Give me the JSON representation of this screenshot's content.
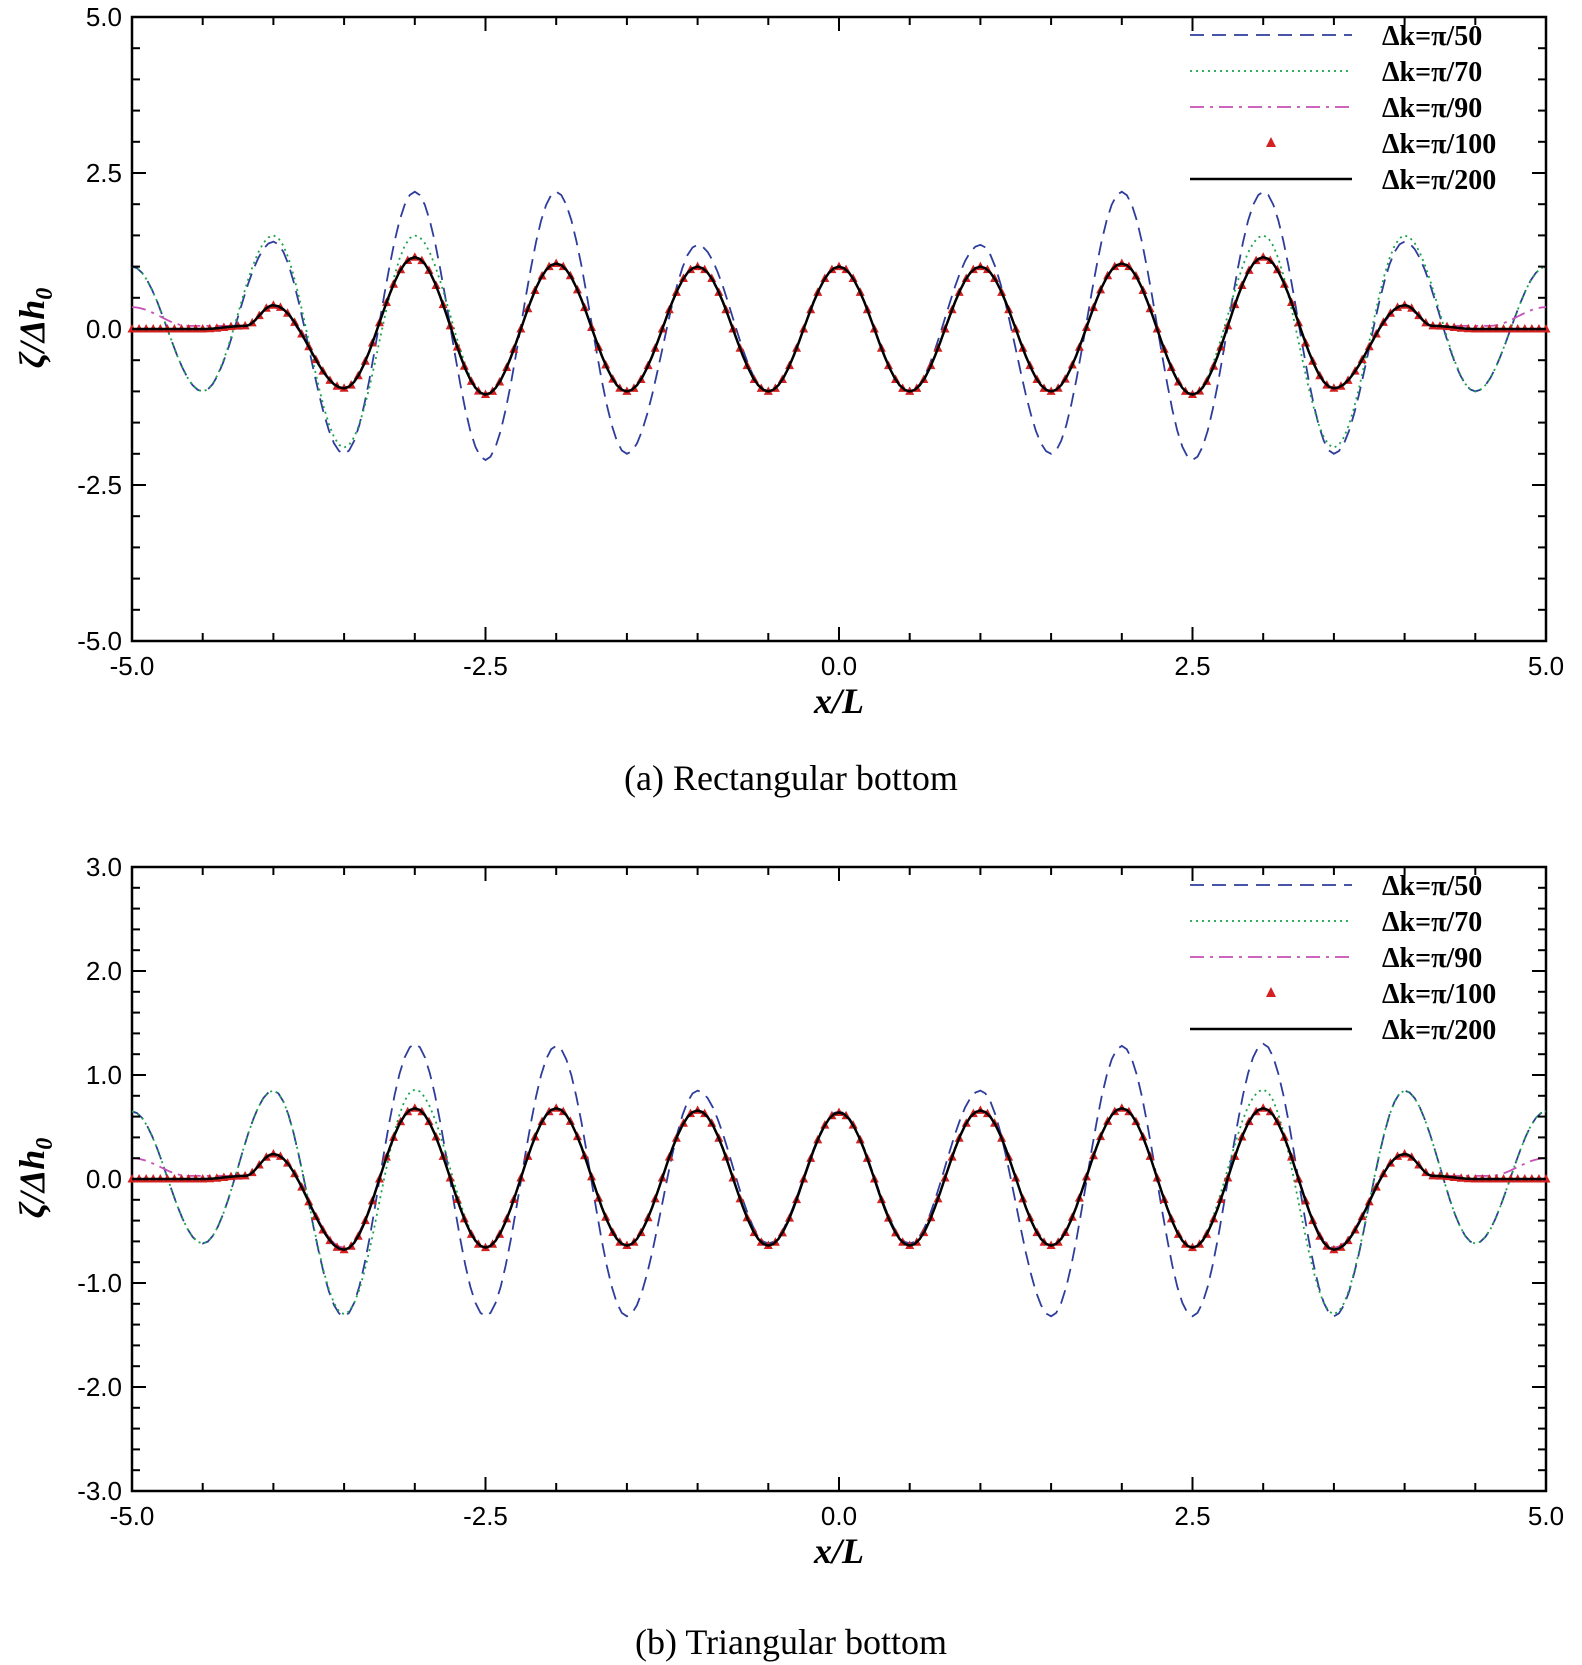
{
  "chart_data": [
    {
      "type": "line",
      "caption": "(a) Rectangular bottom",
      "xlabel": "x/L",
      "ylabel": "ζ/Δh0",
      "xlim": [
        -5.0,
        5.0
      ],
      "ylim": [
        -5.0,
        5.0
      ],
      "xticks": [
        "-5.0",
        "-2.5",
        "0.0",
        "2.5",
        "5.0"
      ],
      "yticks": [
        "5.0",
        "2.5",
        "0.0",
        "-2.5",
        "-5.0"
      ],
      "legend_position": "top-right",
      "series": [
        {
          "name": "Δk=π/50",
          "color": "#2e3d9c",
          "style": "dashed",
          "x": [
            -5,
            -4.5,
            -4,
            -3.5,
            -3,
            -2.5,
            -2,
            -1.5,
            -1,
            -0.5,
            0,
            0.5,
            1,
            1.5,
            2,
            2.5,
            3,
            3.5,
            4,
            4.5,
            5
          ],
          "y": [
            1.0,
            -1.0,
            1.4,
            -2.0,
            2.2,
            -2.1,
            2.2,
            -2.0,
            1.35,
            -1.0,
            1.0,
            -1.0,
            1.35,
            -2.0,
            2.2,
            -2.1,
            2.2,
            -2.0,
            1.4,
            -1.0,
            1.0
          ]
        },
        {
          "name": "Δk=π/70",
          "color": "#1aa34a",
          "style": "dotted",
          "x": [
            -5,
            -4.5,
            -4,
            -3.5,
            -3,
            -2.5,
            -2,
            -1.5,
            -1,
            -0.5,
            0,
            0.5,
            1,
            1.5,
            2,
            2.5,
            3,
            3.5,
            4,
            4.5,
            5
          ],
          "y": [
            1.0,
            -1.0,
            1.5,
            -1.9,
            1.5,
            -1.05,
            1.05,
            -1.0,
            1.0,
            -1.0,
            1.0,
            -1.0,
            1.0,
            -1.0,
            1.05,
            -1.05,
            1.5,
            -1.9,
            1.5,
            -1.0,
            1.0
          ]
        },
        {
          "name": "Δk=π/90",
          "color": "#c64fb8",
          "style": "dashdot",
          "x": [
            -5,
            -4.6,
            -4.2,
            -4,
            -3.5,
            -3,
            -2.5,
            -2,
            -1.5,
            -1,
            -0.5,
            0,
            0.5,
            1,
            1.5,
            2,
            2.5,
            3,
            3.5,
            4,
            4.2,
            4.6,
            5
          ],
          "y": [
            0.35,
            0.05,
            0.05,
            0.35,
            -0.95,
            1.15,
            -1.05,
            1.05,
            -1.0,
            1.0,
            -1.0,
            1.0,
            -1.0,
            1.0,
            -1.0,
            1.05,
            -1.05,
            1.15,
            -0.95,
            0.35,
            0.05,
            0.05,
            0.35
          ]
        },
        {
          "name": "Δk=π/100",
          "color": "#d42020",
          "style": "triangle-markers",
          "x": [
            -5,
            -4.5,
            -4.2,
            -4,
            -3.5,
            -3,
            -2.5,
            -2,
            -1.5,
            -1,
            -0.5,
            0,
            0.5,
            1,
            1.5,
            2,
            2.5,
            3,
            3.5,
            4,
            4.2,
            4.5,
            5
          ],
          "y": [
            0,
            0,
            0.05,
            0.38,
            -0.95,
            1.15,
            -1.05,
            1.05,
            -1.0,
            1.0,
            -1.0,
            1.0,
            -1.0,
            1.0,
            -1.0,
            1.05,
            -1.05,
            1.15,
            -0.95,
            0.38,
            0.05,
            0,
            0
          ]
        },
        {
          "name": "Δk=π/200",
          "color": "#000000",
          "style": "solid",
          "x": [
            -5,
            -4.5,
            -4.2,
            -4,
            -3.5,
            -3,
            -2.5,
            -2,
            -1.5,
            -1,
            -0.5,
            0,
            0.5,
            1,
            1.5,
            2,
            2.5,
            3,
            3.5,
            4,
            4.2,
            4.5,
            5
          ],
          "y": [
            0,
            0,
            0.05,
            0.38,
            -0.95,
            1.15,
            -1.05,
            1.05,
            -1.0,
            1.0,
            -1.0,
            1.0,
            -1.0,
            1.0,
            -1.0,
            1.05,
            -1.05,
            1.15,
            -0.95,
            0.38,
            0.05,
            0,
            0
          ]
        }
      ]
    },
    {
      "type": "line",
      "caption": "(b) Triangular bottom",
      "xlabel": "x/L",
      "ylabel": "ζ/Δh0",
      "xlim": [
        -5.0,
        5.0
      ],
      "ylim": [
        -3.0,
        3.0
      ],
      "xticks": [
        "-5.0",
        "-2.5",
        "0.0",
        "2.5",
        "5.0"
      ],
      "yticks": [
        "3.0",
        "2.0",
        "1.0",
        "0.0",
        "-1.0",
        "-2.0",
        "-3.0"
      ],
      "legend_position": "top-right",
      "series": [
        {
          "name": "Δk=π/50",
          "color": "#2e3d9c",
          "style": "dashed",
          "x": [
            -5,
            -4.5,
            -4,
            -3.5,
            -3,
            -2.5,
            -2,
            -1.5,
            -1,
            -0.5,
            0,
            0.5,
            1,
            1.5,
            2,
            2.5,
            3,
            3.5,
            4,
            4.5,
            5
          ],
          "y": [
            0.65,
            -0.62,
            0.85,
            -1.32,
            1.3,
            -1.32,
            1.28,
            -1.32,
            0.85,
            -0.62,
            0.65,
            -0.62,
            0.85,
            -1.32,
            1.28,
            -1.32,
            1.3,
            -1.32,
            0.85,
            -0.62,
            0.65
          ]
        },
        {
          "name": "Δk=π/70",
          "color": "#1aa34a",
          "style": "dotted",
          "x": [
            -5,
            -4.5,
            -4,
            -3.5,
            -3,
            -2.5,
            -2,
            -1.5,
            -1,
            -0.5,
            0,
            0.5,
            1,
            1.5,
            2,
            2.5,
            3,
            3.5,
            4,
            4.5,
            5
          ],
          "y": [
            0.65,
            -0.62,
            0.85,
            -1.3,
            0.86,
            -0.66,
            0.68,
            -0.64,
            0.66,
            -0.64,
            0.64,
            -0.64,
            0.66,
            -0.64,
            0.68,
            -0.66,
            0.86,
            -1.3,
            0.85,
            -0.62,
            0.65
          ]
        },
        {
          "name": "Δk=π/90",
          "color": "#c64fb8",
          "style": "dashdot",
          "x": [
            -5,
            -4.6,
            -4.2,
            -4,
            -3.5,
            -3,
            -2.5,
            -2,
            -1.5,
            -1,
            -0.5,
            0,
            0.5,
            1,
            1.5,
            2,
            2.5,
            3,
            3.5,
            4,
            4.2,
            4.6,
            5
          ],
          "y": [
            0.2,
            0.03,
            0.03,
            0.24,
            -0.66,
            0.68,
            -0.66,
            0.68,
            -0.64,
            0.66,
            -0.64,
            0.64,
            -0.64,
            0.66,
            -0.64,
            0.68,
            -0.66,
            0.68,
            -0.66,
            0.24,
            0.03,
            0.03,
            0.2
          ]
        },
        {
          "name": "Δk=π/100",
          "color": "#d42020",
          "style": "triangle-markers",
          "x": [
            -5,
            -4.5,
            -4.2,
            -4,
            -3.5,
            -3,
            -2.5,
            -2,
            -1.5,
            -1,
            -0.5,
            0,
            0.5,
            1,
            1.5,
            2,
            2.5,
            3,
            3.5,
            4,
            4.2,
            4.5,
            5
          ],
          "y": [
            0,
            0,
            0.03,
            0.24,
            -0.68,
            0.68,
            -0.66,
            0.68,
            -0.64,
            0.66,
            -0.64,
            0.64,
            -0.64,
            0.66,
            -0.64,
            0.68,
            -0.66,
            0.68,
            -0.68,
            0.24,
            0.03,
            0,
            0
          ]
        },
        {
          "name": "Δk=π/200",
          "color": "#000000",
          "style": "solid",
          "x": [
            -5,
            -4.5,
            -4.2,
            -4,
            -3.5,
            -3,
            -2.5,
            -2,
            -1.5,
            -1,
            -0.5,
            0,
            0.5,
            1,
            1.5,
            2,
            2.5,
            3,
            3.5,
            4,
            4.2,
            4.5,
            5
          ],
          "y": [
            0,
            0,
            0.03,
            0.24,
            -0.68,
            0.68,
            -0.66,
            0.68,
            -0.64,
            0.66,
            -0.64,
            0.64,
            -0.64,
            0.66,
            -0.64,
            0.68,
            -0.66,
            0.68,
            -0.68,
            0.24,
            0.03,
            0,
            0
          ]
        }
      ]
    }
  ]
}
